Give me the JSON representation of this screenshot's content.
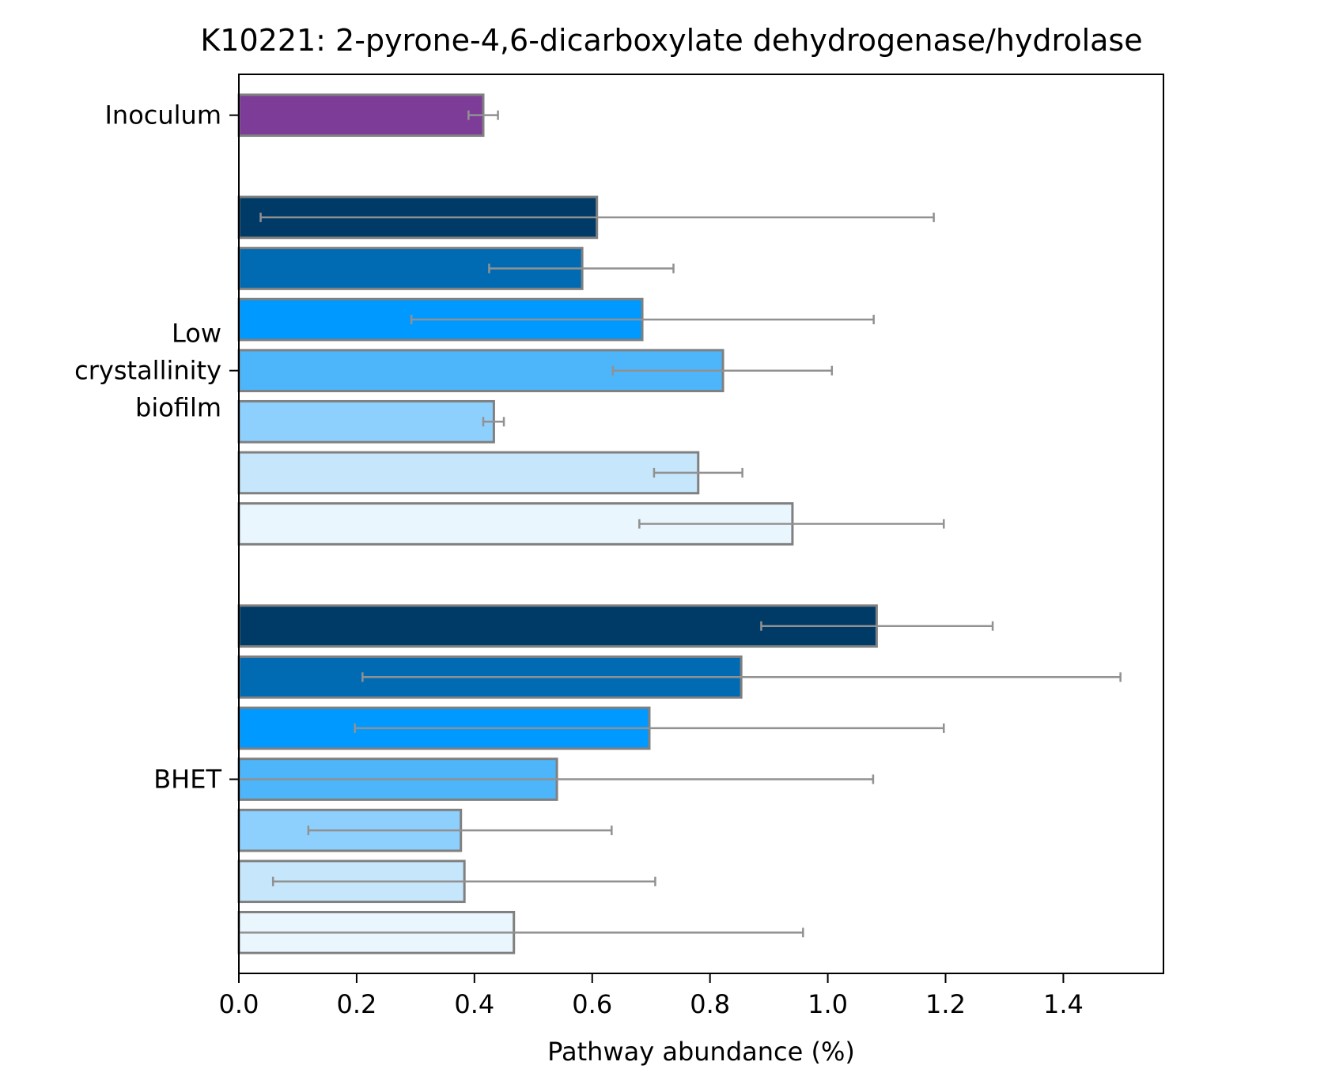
{
  "chart_data": {
    "type": "bar",
    "orientation": "horizontal",
    "title": "K10221: 2-pyrone-4,6-dicarboxylate dehydrogenase/hydrolase",
    "xlabel": "Pathway abundance (%)",
    "ylabel": "",
    "xlim": [
      0,
      1.57
    ],
    "xticks": [
      "0.0",
      "0.2",
      "0.4",
      "0.6",
      "0.8",
      "1.0",
      "1.2",
      "1.4"
    ],
    "grid": false,
    "groups": [
      {
        "label": "Inoculum",
        "label_lines": [
          "Inoculum"
        ],
        "bars": [
          {
            "value": 0.415,
            "err_low": 0.39,
            "err_high": 0.44,
            "color": "#7d3c98"
          }
        ]
      },
      {
        "label": "Low crystallinity biofilm",
        "label_lines": [
          "Low",
          "crystallinity",
          "biofilm"
        ],
        "bars": [
          {
            "value": 0.608,
            "err_low": 0.037,
            "err_high": 1.18,
            "color": "#003a66"
          },
          {
            "value": 0.583,
            "err_low": 0.425,
            "err_high": 0.738,
            "color": "#006bb3"
          },
          {
            "value": 0.685,
            "err_low": 0.293,
            "err_high": 1.078,
            "color": "#0099ff"
          },
          {
            "value": 0.822,
            "err_low": 0.635,
            "err_high": 1.007,
            "color": "#4db5fa"
          },
          {
            "value": 0.433,
            "err_low": 0.415,
            "err_high": 0.45,
            "color": "#8ed0fd"
          },
          {
            "value": 0.78,
            "err_low": 0.705,
            "err_high": 0.855,
            "color": "#c6e6fc"
          },
          {
            "value": 0.94,
            "err_low": 0.68,
            "err_high": 1.197,
            "color": "#eaf6fd"
          }
        ]
      },
      {
        "label": "BHET",
        "label_lines": [
          "BHET"
        ],
        "bars": [
          {
            "value": 1.083,
            "err_low": 0.887,
            "err_high": 1.28,
            "color": "#003a66"
          },
          {
            "value": 0.853,
            "err_low": 0.21,
            "err_high": 1.497,
            "color": "#006bb3"
          },
          {
            "value": 0.697,
            "err_low": 0.197,
            "err_high": 1.197,
            "color": "#0099ff"
          },
          {
            "value": 0.54,
            "err_low": 0.0,
            "err_high": 1.077,
            "color": "#4db5fa"
          },
          {
            "value": 0.377,
            "err_low": 0.118,
            "err_high": 0.633,
            "color": "#8ed0fd"
          },
          {
            "value": 0.383,
            "err_low": 0.058,
            "err_high": 0.707,
            "color": "#c6e6fc"
          },
          {
            "value": 0.467,
            "err_low": 0.0,
            "err_high": 0.958,
            "color": "#eaf6fd"
          }
        ]
      }
    ],
    "colors": {
      "bar_edge": "#808080",
      "error_bar": "#919191",
      "axis": "#000000"
    }
  }
}
